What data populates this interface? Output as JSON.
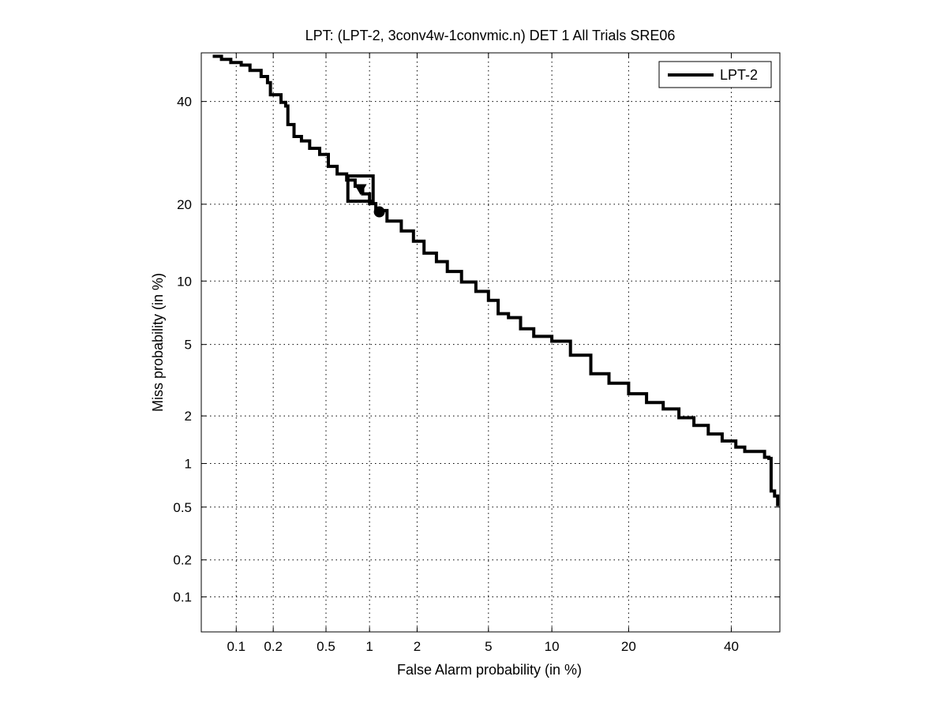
{
  "chart_data": {
    "type": "line",
    "title": "LPT: (LPT-2, 3conv4w-1convmic.n) DET 1 All Trials SRE06",
    "xlabel": "False Alarm probability (in %)",
    "ylabel": "Miss probability (in %)",
    "x_scale": "probit",
    "y_scale": "probit",
    "xlim": [
      0.05,
      51
    ],
    "ylim": [
      0.05,
      51
    ],
    "x_ticks": [
      0.1,
      0.2,
      0.5,
      1,
      2,
      5,
      10,
      20,
      40
    ],
    "x_tick_labels": [
      "0.1",
      "0.2",
      "0.5",
      "1",
      "2",
      "5",
      "10",
      "20",
      "40"
    ],
    "y_ticks": [
      0.1,
      0.2,
      0.5,
      1,
      2,
      5,
      10,
      20,
      40
    ],
    "y_tick_labels": [
      "0.1",
      "0.2",
      "0.5",
      "1",
      "2",
      "5",
      "10",
      "20",
      "40"
    ],
    "grid": true,
    "legend_position": "top-right",
    "series": [
      {
        "name": "LPT-2",
        "color": "#000000",
        "points": [
          [
            0.065,
            50.2
          ],
          [
            0.075,
            49.5
          ],
          [
            0.09,
            48.8
          ],
          [
            0.11,
            48.2
          ],
          [
            0.13,
            47.0
          ],
          [
            0.16,
            45.6
          ],
          [
            0.18,
            44.2
          ],
          [
            0.19,
            41.5
          ],
          [
            0.23,
            39.8
          ],
          [
            0.25,
            39.0
          ],
          [
            0.26,
            35.0
          ],
          [
            0.29,
            32.5
          ],
          [
            0.33,
            31.6
          ],
          [
            0.38,
            30.1
          ],
          [
            0.45,
            28.9
          ],
          [
            0.52,
            26.6
          ],
          [
            0.6,
            25.2
          ],
          [
            0.7,
            24.1
          ],
          [
            0.8,
            23.0
          ],
          [
            0.9,
            21.7
          ],
          [
            1.0,
            20.1
          ],
          [
            1.1,
            19.0
          ],
          [
            1.3,
            17.4
          ],
          [
            1.6,
            16.0
          ],
          [
            1.9,
            14.6
          ],
          [
            2.2,
            13.1
          ],
          [
            2.6,
            12.1
          ],
          [
            3.0,
            11.0
          ],
          [
            3.6,
            9.9
          ],
          [
            4.3,
            9.0
          ],
          [
            5.0,
            8.2
          ],
          [
            5.6,
            7.1
          ],
          [
            6.3,
            6.8
          ],
          [
            7.2,
            6.0
          ],
          [
            8.3,
            5.5
          ],
          [
            10.0,
            5.2
          ],
          [
            12.0,
            4.4
          ],
          [
            14.5,
            3.5
          ],
          [
            17.0,
            3.1
          ],
          [
            20.0,
            2.7
          ],
          [
            23.0,
            2.4
          ],
          [
            26.0,
            2.2
          ],
          [
            29.0,
            1.95
          ],
          [
            32.0,
            1.75
          ],
          [
            35.0,
            1.55
          ],
          [
            38.0,
            1.4
          ],
          [
            41.0,
            1.28
          ],
          [
            43.0,
            1.2
          ],
          [
            46.5,
            1.2
          ],
          [
            47.5,
            1.1
          ],
          [
            48.5,
            1.08
          ],
          [
            49.0,
            0.65
          ],
          [
            49.8,
            0.6
          ],
          [
            50.5,
            0.52
          ]
        ]
      }
    ],
    "markers": [
      {
        "shape": "square",
        "x": 0.87,
        "y": 22.6
      },
      {
        "shape": "triangle",
        "x": 0.87,
        "y": 22.6
      },
      {
        "shape": "circle",
        "x": 1.16,
        "y": 18.8
      }
    ]
  }
}
